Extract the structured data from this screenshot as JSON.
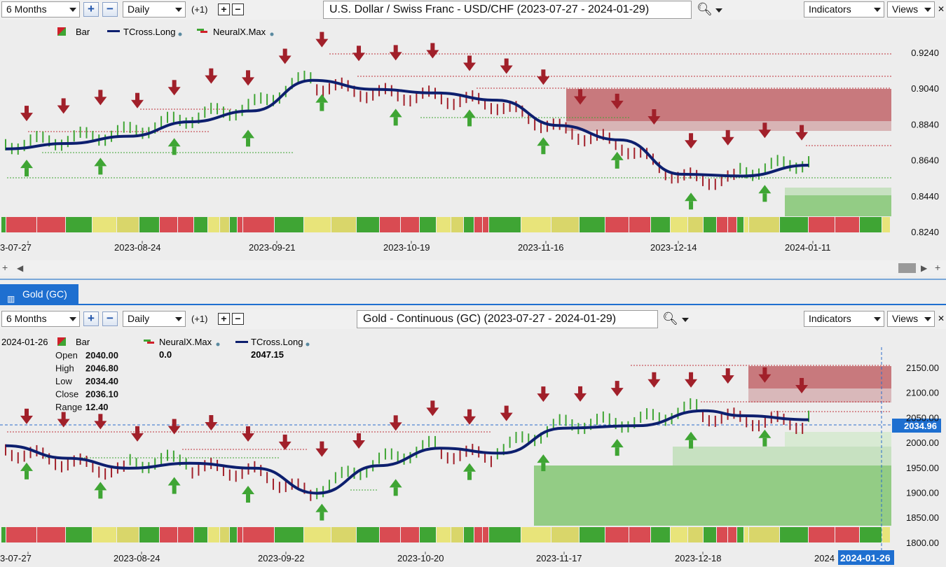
{
  "top": {
    "toolbar": {
      "range": "6 Months",
      "interval": "Daily",
      "plus_one": "(+1)",
      "title": "U.S. Dollar / Swiss Franc - USD/CHF (2023-07-27 - 2024-01-29)",
      "indicators": "Indicators",
      "views": "Views"
    },
    "legend": {
      "bar": "Bar",
      "tcross": "TCross.Long",
      "neural": "NeuralX.Max"
    },
    "y_labels": [
      "0.9240",
      "0.9040",
      "0.8840",
      "0.8640",
      "0.8440",
      "0.8240"
    ],
    "x_labels": [
      "3-07-27",
      "2023-08-24",
      "2023-09-21",
      "2023-10-19",
      "2023-11-16",
      "2023-12-14",
      "2024-01-11"
    ]
  },
  "bottom": {
    "tab_label": "Gold (GC)",
    "toolbar": {
      "range": "6 Months",
      "interval": "Daily",
      "plus_one": "(+1)",
      "title": "Gold - Continuous (GC) (2023-07-27 - 2024-01-29)",
      "indicators": "Indicators",
      "views": "Views"
    },
    "legend": {
      "date": "2024-01-26",
      "bar": "Bar",
      "neural": "NeuralX.Max",
      "neural_value": "0.0",
      "tcross": "TCross.Long",
      "tcross_value": "2047.15"
    },
    "ohlc": [
      {
        "label": "Open",
        "value": "2040.00"
      },
      {
        "label": "High",
        "value": "2046.80"
      },
      {
        "label": "Low",
        "value": "2034.40"
      },
      {
        "label": "Close",
        "value": "2036.10"
      },
      {
        "label": "Range",
        "value": "12.40"
      }
    ],
    "price_tag": "2034.96",
    "y_labels": [
      "2150.00",
      "2100.00",
      "2050.00",
      "2000.00",
      "1950.00",
      "1900.00",
      "1850.00",
      "1800.00"
    ],
    "x_labels": [
      "3-07-27",
      "2023-08-24",
      "2023-09-22",
      "2023-10-20",
      "2023-11-17",
      "2023-12-18",
      "2024"
    ],
    "date_tag": "2024-01-26"
  },
  "colors": {
    "up": "#3fa534",
    "down": "#a1202a",
    "tcross": "#0d1f6e",
    "tab": "#1e6fd0"
  },
  "chart_data": [
    {
      "type": "line",
      "title": "U.S. Dollar / Swiss Franc - USD/CHF (2023-07-27 - 2024-01-29)",
      "series": [
        {
          "name": "TCross.Long",
          "x": [
            "2023-07-27",
            "2023-08-10",
            "2023-08-24",
            "2023-09-07",
            "2023-09-21",
            "2023-10-05",
            "2023-10-19",
            "2023-11-02",
            "2023-11-16",
            "2023-11-30",
            "2023-12-14",
            "2023-12-28",
            "2024-01-11",
            "2024-01-26"
          ],
          "y": [
            0.871,
            0.874,
            0.878,
            0.886,
            0.892,
            0.909,
            0.904,
            0.902,
            0.898,
            0.884,
            0.876,
            0.857,
            0.856,
            0.862
          ]
        }
      ],
      "ylim": [
        0.82,
        0.93
      ],
      "y_ticks": [
        0.924,
        0.904,
        0.884,
        0.864,
        0.844,
        0.824
      ]
    },
    {
      "type": "line",
      "title": "Gold - Continuous (GC) (2023-07-27 - 2024-01-29)",
      "series": [
        {
          "name": "TCross.Long",
          "x": [
            "2023-07-27",
            "2023-08-10",
            "2023-08-24",
            "2023-09-07",
            "2023-09-22",
            "2023-10-06",
            "2023-10-20",
            "2023-11-03",
            "2023-11-17",
            "2023-12-01",
            "2023-12-18",
            "2024-01-02",
            "2024-01-11",
            "2024-01-26"
          ],
          "y": [
            1995,
            1970,
            1950,
            1960,
            1950,
            1900,
            1955,
            1990,
            1980,
            2030,
            2035,
            2065,
            2055,
            2047
          ]
        }
      ],
      "ylim": [
        1795,
        2165
      ],
      "y_ticks": [
        2150,
        2100,
        2050,
        2000,
        1950,
        1900,
        1850,
        1800
      ]
    }
  ]
}
